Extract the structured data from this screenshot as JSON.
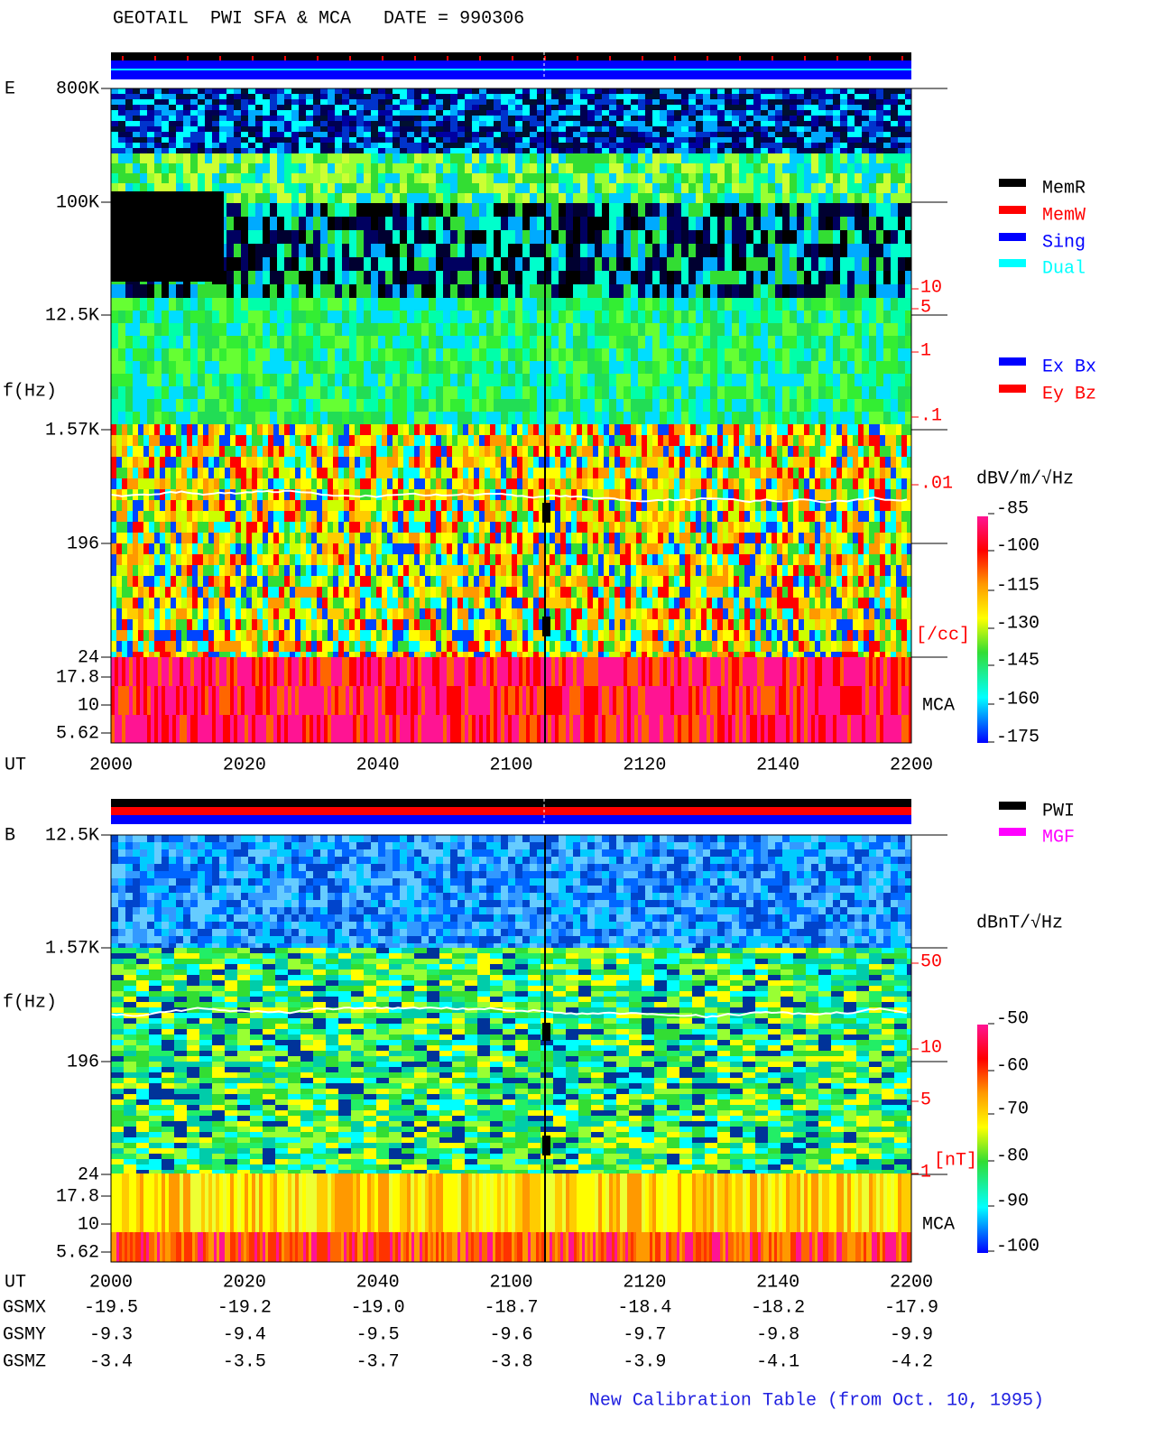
{
  "header": {
    "title": "GEOTAIL  PWI SFA & MCA   DATE = 990306"
  },
  "panel_e": {
    "label": "E",
    "y_label": "f(Hz)",
    "y_ticks": [
      "800K",
      "100K",
      "12.5K",
      "1.57K",
      "196",
      "24",
      "17.8",
      "10",
      "5.62"
    ],
    "x_axis_label": "UT",
    "x_ticks": [
      "2000",
      "2020",
      "2040",
      "2100",
      "2120",
      "2140",
      "2200"
    ],
    "mode_legend": [
      "MemR",
      "MemW",
      "Sing",
      "Dual"
    ],
    "component_legend": [
      "Ex Bx",
      "Ey Bz"
    ],
    "colorbar_unit": "dBV/m/√Hz",
    "colorbar_ticks": [
      "-85",
      "-100",
      "-115",
      "-130",
      "-145",
      "-160",
      "-175"
    ],
    "density_ticks": [
      "10",
      "5",
      "1",
      ".1",
      ".01"
    ],
    "density_unit": "[/cc]",
    "mca_label": "MCA"
  },
  "panel_b": {
    "label": "B",
    "y_label": "f(Hz)",
    "y_ticks": [
      "12.5K",
      "1.57K",
      "196",
      "24",
      "17.8",
      "10",
      "5.62"
    ],
    "x_axis_label": "UT",
    "x_ticks": [
      "2000",
      "2020",
      "2040",
      "2100",
      "2120",
      "2140",
      "2200"
    ],
    "source_legend": [
      "PWI",
      "MGF"
    ],
    "colorbar_unit": "dBnT/√Hz",
    "colorbar_ticks": [
      "-50",
      "-60",
      "-70",
      "-80",
      "-90",
      "-100"
    ],
    "field_ticks": [
      "50",
      "10",
      "5",
      "1"
    ],
    "field_unit": "[nT]",
    "mca_label": "MCA"
  },
  "orbit": {
    "rows": [
      {
        "label": "GSMX",
        "values": [
          "-19.5",
          "-19.2",
          "-19.0",
          "-18.7",
          "-18.4",
          "-18.2",
          "-17.9"
        ]
      },
      {
        "label": "GSMY",
        "values": [
          "-9.3",
          "-9.4",
          "-9.5",
          "-9.6",
          "-9.7",
          "-9.8",
          "-9.9"
        ]
      },
      {
        "label": "GSMZ",
        "values": [
          "-3.4",
          "-3.5",
          "-3.7",
          "-3.8",
          "-3.9",
          "-4.1",
          "-4.2"
        ]
      }
    ]
  },
  "footer": "New Calibration Table (from Oct. 10, 1995)"
}
